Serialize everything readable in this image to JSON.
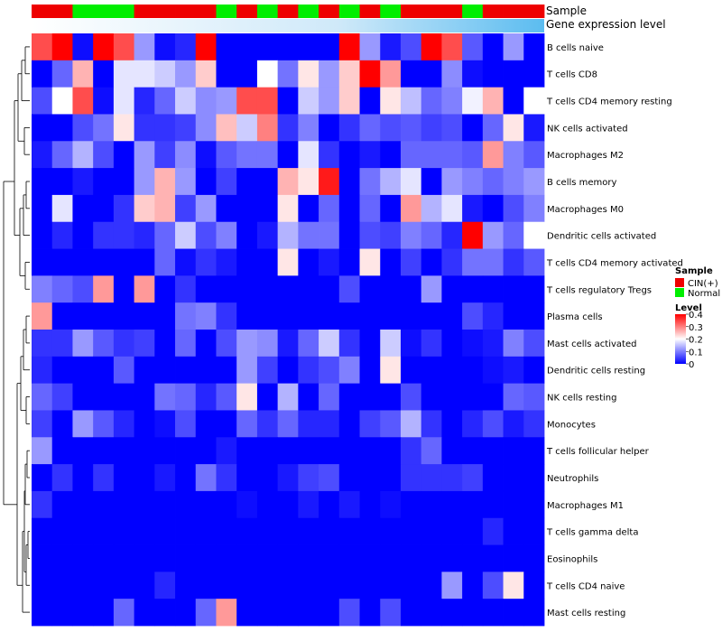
{
  "chart_data": {
    "type": "heatmap",
    "annotation_rows": [
      "Sample",
      "Gene expression level"
    ],
    "sample_groups": [
      "CIN(+)",
      "CIN(+)",
      "Normal",
      "Normal",
      "Normal",
      "CIN(+)",
      "CIN(+)",
      "CIN(+)",
      "CIN(+)",
      "Normal",
      "CIN(+)",
      "Normal",
      "CIN(+)",
      "Normal",
      "CIN(+)",
      "Normal",
      "CIN(+)",
      "Normal",
      "CIN(+)",
      "CIN(+)",
      "CIN(+)",
      "Normal",
      "CIN(+)",
      "CIN(+)",
      "CIN(+)"
    ],
    "rows": [
      "B cells naive",
      "T cells CD8",
      "T cells CD4 memory resting",
      "NK cells activated",
      "Macrophages M2",
      "B cells memory",
      "Macrophages M0",
      "Dendritic cells activated",
      "T cells CD4 memory activated",
      "T cells regulatory  Tregs",
      "Plasma cells",
      "Mast cells activated",
      "Dendritic cells resting",
      "NK cells resting",
      "Monocytes",
      "T cells follicular helper",
      "Neutrophils",
      "Macrophages M1",
      "T cells gamma delta",
      "Eosinophils",
      "T cells CD4 naive",
      "Mast cells resting"
    ],
    "values": [
      [
        0.34,
        0.4,
        0.01,
        0.4,
        0.34,
        0.12,
        0.01,
        0.03,
        0.4,
        0.0,
        0.0,
        0.0,
        0.0,
        0.0,
        0.0,
        0.4,
        0.12,
        0.02,
        0.06,
        0.4,
        0.34,
        0.07,
        0.0,
        0.12,
        0.0
      ],
      [
        0.0,
        0.08,
        0.26,
        0.0,
        0.18,
        0.18,
        0.16,
        0.12,
        0.24,
        0.0,
        0.0,
        0.2,
        0.09,
        0.22,
        0.12,
        0.24,
        0.4,
        0.28,
        0.0,
        0.0,
        0.11,
        0.01,
        0.0,
        0.0,
        0.0
      ],
      [
        0.06,
        0.2,
        0.34,
        0.01,
        0.18,
        0.03,
        0.08,
        0.16,
        0.11,
        0.12,
        0.34,
        0.34,
        0.0,
        0.16,
        0.12,
        0.24,
        0.0,
        0.22,
        0.15,
        0.08,
        0.1,
        0.19,
        0.26,
        0.0,
        0.2
      ],
      [
        0.0,
        0.0,
        0.06,
        0.09,
        0.22,
        0.04,
        0.04,
        0.05,
        0.11,
        0.25,
        0.16,
        0.3,
        0.04,
        0.1,
        0.0,
        0.04,
        0.08,
        0.06,
        0.07,
        0.05,
        0.06,
        0.0,
        0.08,
        0.22,
        0.02
      ],
      [
        0.02,
        0.08,
        0.14,
        0.06,
        0.0,
        0.12,
        0.05,
        0.11,
        0.01,
        0.07,
        0.09,
        0.09,
        0.0,
        0.18,
        0.04,
        0.0,
        0.02,
        0.0,
        0.08,
        0.08,
        0.08,
        0.07,
        0.28,
        0.1,
        0.07
      ],
      [
        0.0,
        0.0,
        0.02,
        0.0,
        0.0,
        0.12,
        0.26,
        0.12,
        0.0,
        0.05,
        0.0,
        0.0,
        0.26,
        0.22,
        0.38,
        0.0,
        0.09,
        0.14,
        0.18,
        0.0,
        0.12,
        0.1,
        0.08,
        0.1,
        0.12
      ],
      [
        0.0,
        0.18,
        0.0,
        0.0,
        0.04,
        0.24,
        0.26,
        0.05,
        0.12,
        0.0,
        0.0,
        0.0,
        0.22,
        0.0,
        0.08,
        0.0,
        0.08,
        0.0,
        0.28,
        0.14,
        0.18,
        0.02,
        0.0,
        0.06,
        0.1
      ],
      [
        0.0,
        0.03,
        0.0,
        0.04,
        0.04,
        0.03,
        0.08,
        0.16,
        0.06,
        0.1,
        0.0,
        0.02,
        0.14,
        0.09,
        0.09,
        0.0,
        0.06,
        0.05,
        0.1,
        0.08,
        0.03,
        0.4,
        0.12,
        0.08,
        0.2
      ],
      [
        0.0,
        0.0,
        0.0,
        0.0,
        0.0,
        0.0,
        0.08,
        0.01,
        0.04,
        0.02,
        0.0,
        0.0,
        0.22,
        0.0,
        0.02,
        0.0,
        0.22,
        0.0,
        0.05,
        0.0,
        0.04,
        0.09,
        0.09,
        0.04,
        0.07
      ],
      [
        0.1,
        0.08,
        0.06,
        0.28,
        0.0,
        0.28,
        0.0,
        0.04,
        0.0,
        0.0,
        0.0,
        0.0,
        0.0,
        0.0,
        0.0,
        0.06,
        0.0,
        0.0,
        0.0,
        0.12,
        0.0,
        0.0,
        0.0,
        0.0,
        0.0
      ],
      [
        0.28,
        0.0,
        0.0,
        0.0,
        0.0,
        0.0,
        0.0,
        0.09,
        0.1,
        0.04,
        0.0,
        0.0,
        0.0,
        0.0,
        0.0,
        0.0,
        0.0,
        0.0,
        0.0,
        0.0,
        0.0,
        0.06,
        0.03,
        0.0,
        0.0
      ],
      [
        0.04,
        0.04,
        0.12,
        0.07,
        0.04,
        0.05,
        0.0,
        0.08,
        0.0,
        0.06,
        0.12,
        0.11,
        0.02,
        0.08,
        0.16,
        0.04,
        0.0,
        0.16,
        0.01,
        0.04,
        0.0,
        0.01,
        0.02,
        0.1,
        0.06
      ],
      [
        0.03,
        0.0,
        0.0,
        0.0,
        0.07,
        0.0,
        0.0,
        0.0,
        0.0,
        0.0,
        0.12,
        0.05,
        0.0,
        0.04,
        0.06,
        0.1,
        0.0,
        0.22,
        0.0,
        0.0,
        0.0,
        0.0,
        0.01,
        0.02,
        0.0
      ],
      [
        0.08,
        0.05,
        0.0,
        0.0,
        0.0,
        0.0,
        0.09,
        0.08,
        0.03,
        0.07,
        0.22,
        0.0,
        0.14,
        0.0,
        0.08,
        0.0,
        0.0,
        0.0,
        0.06,
        0.0,
        0.0,
        0.0,
        0.0,
        0.08,
        0.07
      ],
      [
        0.05,
        0.0,
        0.12,
        0.07,
        0.03,
        0.0,
        0.01,
        0.06,
        0.0,
        0.0,
        0.08,
        0.04,
        0.08,
        0.03,
        0.03,
        0.0,
        0.05,
        0.07,
        0.14,
        0.04,
        0.0,
        0.03,
        0.06,
        0.02,
        0.04
      ],
      [
        0.12,
        0.0,
        0.0,
        0.0,
        0.0,
        0.0,
        0.0,
        0.0,
        0.0,
        0.02,
        0.0,
        0.0,
        0.0,
        0.0,
        0.0,
        0.0,
        0.0,
        0.0,
        0.04,
        0.08,
        0.0,
        0.0,
        0.0,
        0.0,
        0.0
      ],
      [
        0.0,
        0.04,
        0.0,
        0.04,
        0.0,
        0.0,
        0.02,
        0.0,
        0.09,
        0.04,
        0.0,
        0.0,
        0.02,
        0.05,
        0.06,
        0.0,
        0.0,
        0.0,
        0.04,
        0.04,
        0.04,
        0.05,
        0.0,
        0.0,
        0.0
      ],
      [
        0.04,
        0.0,
        0.0,
        0.0,
        0.0,
        0.0,
        0.0,
        0.0,
        0.0,
        0.0,
        0.01,
        0.0,
        0.0,
        0.02,
        0.0,
        0.02,
        0.0,
        0.01,
        0.0,
        0.0,
        0.0,
        0.0,
        0.0,
        0.0,
        0.0
      ],
      [
        0.0,
        0.0,
        0.0,
        0.0,
        0.0,
        0.0,
        0.0,
        0.0,
        0.0,
        0.0,
        0.0,
        0.0,
        0.0,
        0.0,
        0.0,
        0.0,
        0.0,
        0.0,
        0.0,
        0.0,
        0.0,
        0.0,
        0.03,
        0.0,
        0.0
      ],
      [
        0.0,
        0.0,
        0.0,
        0.0,
        0.0,
        0.0,
        0.0,
        0.0,
        0.0,
        0.0,
        0.0,
        0.0,
        0.0,
        0.0,
        0.0,
        0.0,
        0.0,
        0.0,
        0.0,
        0.0,
        0.0,
        0.0,
        0.0,
        0.0,
        0.0
      ],
      [
        0.0,
        0.0,
        0.0,
        0.0,
        0.0,
        0.0,
        0.03,
        0.0,
        0.0,
        0.0,
        0.0,
        0.0,
        0.0,
        0.0,
        0.0,
        0.0,
        0.0,
        0.0,
        0.0,
        0.0,
        0.12,
        0.0,
        0.06,
        0.22,
        0.0
      ],
      [
        0.0,
        0.0,
        0.0,
        0.0,
        0.08,
        0.0,
        0.0,
        0.0,
        0.08,
        0.28,
        0.0,
        0.0,
        0.0,
        0.0,
        0.0,
        0.06,
        0.0,
        0.06,
        0.0,
        0.0,
        0.0,
        0.0,
        0.0,
        0.0,
        0.0
      ]
    ],
    "legend_sample": {
      "title": "Sample",
      "entries": [
        {
          "label": "CIN(+)",
          "color": "#ee0000"
        },
        {
          "label": "Normal",
          "color": "#00ee00"
        }
      ]
    },
    "legend_level": {
      "title": "Level",
      "ticks": [
        "0.4",
        "0.3",
        "0.2",
        "0.1",
        "0"
      ],
      "range": [
        0,
        0.4
      ],
      "colors": {
        "low": "#0000ff",
        "mid": "#ffffff",
        "high": "#ff0000"
      }
    },
    "expression_bar_color": "#5bbcf0"
  }
}
